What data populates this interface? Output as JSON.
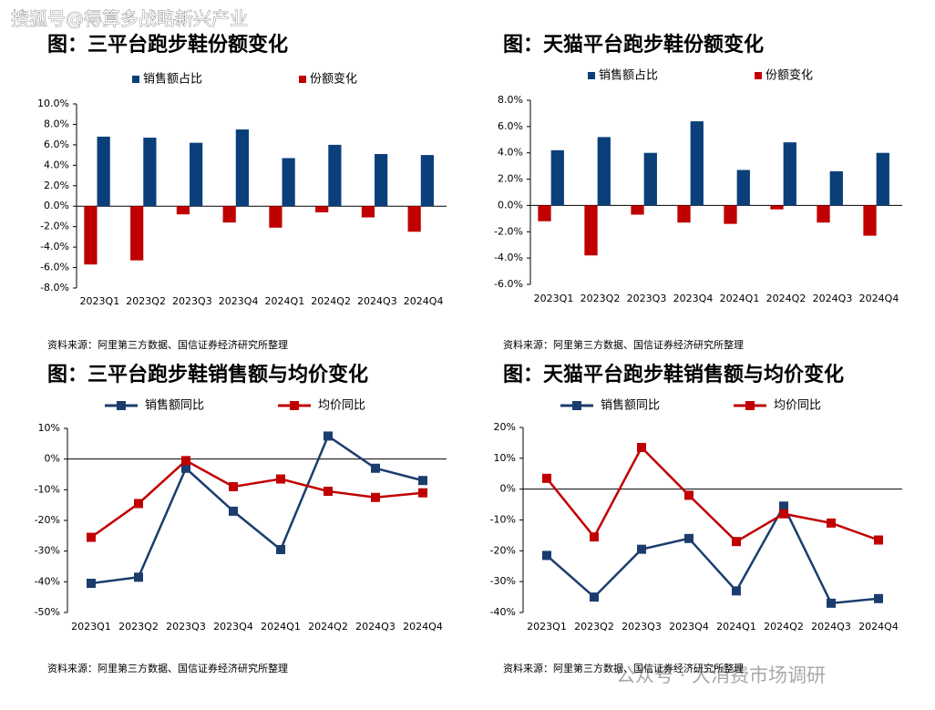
{
  "watermarks": [
    "搜狐号@得算多战略新兴产业",
    "公众号 · 大消费市场调研"
  ],
  "chart_data": [
    {
      "type": "bar",
      "title": "图：三平台跑步鞋份额变化",
      "source": "资料来源：阿里第三方数据、国信证券经济研究所整理",
      "categories": [
        "2023Q1",
        "2023Q2",
        "2023Q3",
        "2023Q4",
        "2024Q1",
        "2024Q2",
        "2024Q3",
        "2024Q4"
      ],
      "series": [
        {
          "name": "销售额占比",
          "color": "#0b3f7a",
          "values": [
            6.8,
            6.7,
            6.2,
            7.5,
            4.7,
            6.0,
            5.1,
            5.0
          ]
        },
        {
          "name": "份额变化",
          "color": "#c00000",
          "values": [
            -5.7,
            -5.3,
            -0.8,
            -1.6,
            -2.1,
            -0.6,
            -1.1,
            -2.5
          ]
        }
      ],
      "ylim": [
        -8,
        10
      ],
      "yticks": [
        {
          "value": 10,
          "label": "10.0%"
        },
        {
          "value": 8,
          "label": "8.0%"
        },
        {
          "value": 6,
          "label": "6.0%"
        },
        {
          "value": 4,
          "label": "4.0%"
        },
        {
          "value": 2,
          "label": "2.0%"
        },
        {
          "value": 0,
          "label": "0.0%"
        },
        {
          "value": -2,
          "label": "-2.0%"
        },
        {
          "value": -4,
          "label": "-4.0%"
        },
        {
          "value": -6,
          "label": "-6.0%"
        },
        {
          "value": -8,
          "label": "-8.0%"
        }
      ]
    },
    {
      "type": "bar",
      "title": "图：天猫平台跑步鞋份额变化",
      "source": "资料来源：阿里第三方数据、国信证券经济研究所整理",
      "categories": [
        "2023Q1",
        "2023Q2",
        "2023Q3",
        "2023Q4",
        "2024Q1",
        "2024Q2",
        "2024Q3",
        "2024Q4"
      ],
      "series": [
        {
          "name": "销售额占比",
          "color": "#0b3f7a",
          "values": [
            4.2,
            5.2,
            4.0,
            6.4,
            2.7,
            4.8,
            2.6,
            4.0
          ]
        },
        {
          "name": "份额变化",
          "color": "#c00000",
          "values": [
            -1.2,
            -3.8,
            -0.7,
            -1.3,
            -1.4,
            -0.3,
            -1.3,
            -2.3
          ]
        }
      ],
      "ylim": [
        -6,
        8
      ],
      "yticks": [
        {
          "value": 8,
          "label": "8.0%"
        },
        {
          "value": 6,
          "label": "6.0%"
        },
        {
          "value": 4,
          "label": "4.0%"
        },
        {
          "value": 2,
          "label": "2.0%"
        },
        {
          "value": 0,
          "label": "0.0%"
        },
        {
          "value": -2,
          "label": "-2.0%"
        },
        {
          "value": -4,
          "label": "-4.0%"
        },
        {
          "value": -6,
          "label": "-6.0%"
        }
      ]
    },
    {
      "type": "line",
      "title": "图：三平台跑步鞋销售额与均价变化",
      "source": "资料来源：阿里第三方数据、国信证券经济研究所整理",
      "categories": [
        "2023Q1",
        "2023Q2",
        "2023Q3",
        "2023Q4",
        "2024Q1",
        "2024Q2",
        "2024Q3",
        "2024Q4"
      ],
      "series": [
        {
          "name": "销售额同比",
          "color": "#1b3d6e",
          "values": [
            -40.5,
            -38.5,
            -3,
            -17,
            -29.5,
            7.5,
            -3,
            -7
          ]
        },
        {
          "name": "均价同比",
          "color": "#c00000",
          "values": [
            -25.5,
            -14.5,
            -0.5,
            -9,
            -6.5,
            -10.5,
            -12.5,
            -11
          ]
        }
      ],
      "ylim": [
        -50,
        10
      ],
      "yticks": [
        {
          "value": 10,
          "label": "10%"
        },
        {
          "value": 0,
          "label": "0%"
        },
        {
          "value": -10,
          "label": "-10%"
        },
        {
          "value": -20,
          "label": "-20%"
        },
        {
          "value": -30,
          "label": "-30%"
        },
        {
          "value": -40,
          "label": "-40%"
        },
        {
          "value": -50,
          "label": "-50%"
        }
      ]
    },
    {
      "type": "line",
      "title": "图：天猫平台跑步鞋销售额与均价变化",
      "source": "资料来源：阿里第三方数据、国信证券经济研究所整理",
      "categories": [
        "2023Q1",
        "2023Q2",
        "2023Q3",
        "2023Q4",
        "2024Q1",
        "2024Q2",
        "2024Q3",
        "2024Q4"
      ],
      "series": [
        {
          "name": "销售额同比",
          "color": "#1b3d6e",
          "values": [
            -21.5,
            -35,
            -19.5,
            -16,
            -33,
            -5.5,
            -37,
            -35.5
          ]
        },
        {
          "name": "均价同比",
          "color": "#c00000",
          "values": [
            3.5,
            -15.5,
            13.5,
            -2,
            -17,
            -8,
            -11,
            -16.5
          ]
        }
      ],
      "ylim": [
        -40,
        20
      ],
      "yticks": [
        {
          "value": 20,
          "label": "20%"
        },
        {
          "value": 10,
          "label": "10%"
        },
        {
          "value": 0,
          "label": "0%"
        },
        {
          "value": -10,
          "label": "-10%"
        },
        {
          "value": -20,
          "label": "-20%"
        },
        {
          "value": -30,
          "label": "-30%"
        },
        {
          "value": -40,
          "label": "-40%"
        }
      ]
    }
  ]
}
